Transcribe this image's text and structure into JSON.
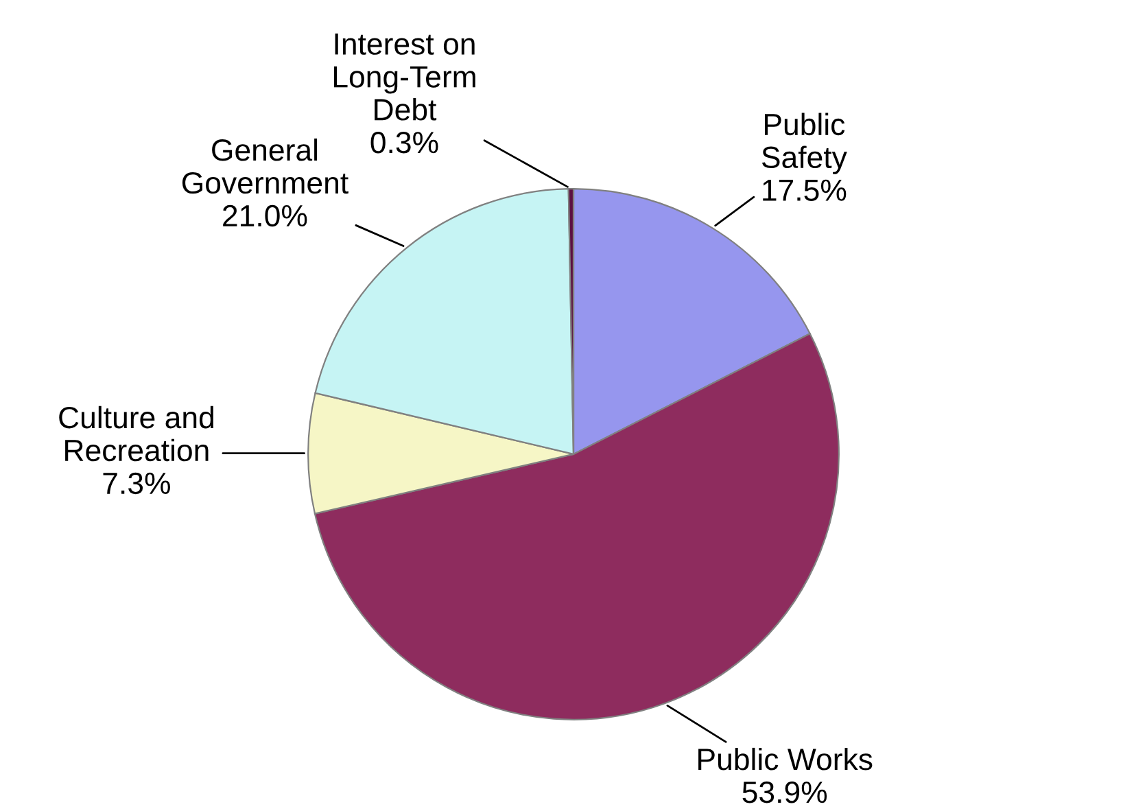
{
  "chart_data": {
    "type": "pie",
    "categories": [
      "Public\nSafety",
      "Public Works",
      "Culture and\nRecreation",
      "General\nGovernment",
      "Interest on\nLong-Term\nDebt"
    ],
    "values": [
      17.5,
      53.9,
      7.3,
      21.0,
      0.3
    ],
    "value_labels": [
      "17.5%",
      "53.9%",
      "7.3%",
      "21.0%",
      "0.3%"
    ],
    "colors": [
      "#9696ee",
      "#8e2c5e",
      "#f6f6c6",
      "#c6f4f4",
      "#5c1042"
    ]
  }
}
